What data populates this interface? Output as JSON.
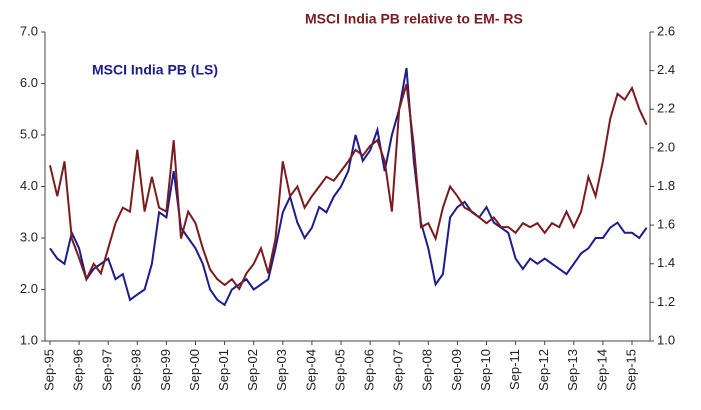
{
  "chart_data": {
    "type": "line",
    "categories": [
      "Sep-95",
      null,
      null,
      null,
      "Sep-96",
      null,
      null,
      null,
      "Sep-97",
      null,
      null,
      null,
      "Sep-98",
      null,
      null,
      null,
      "Sep-99",
      null,
      null,
      null,
      "Sep-00",
      null,
      null,
      null,
      "Sep-01",
      null,
      null,
      null,
      "Sep-02",
      null,
      null,
      null,
      "Sep-03",
      null,
      null,
      null,
      "Sep-04",
      null,
      null,
      null,
      "Sep-05",
      null,
      null,
      null,
      "Sep-06",
      null,
      null,
      null,
      "Sep-07",
      null,
      null,
      null,
      "Sep-08",
      null,
      null,
      null,
      "Sep-09",
      null,
      null,
      null,
      "Sep-10",
      null,
      null,
      null,
      "Sep-11",
      null,
      null,
      null,
      "Sep-12",
      null,
      null,
      null,
      "Sep-13",
      null,
      null,
      null,
      "Sep-14",
      null,
      null,
      null,
      "Sep-15",
      null,
      null
    ],
    "series": [
      {
        "name": "MSCI India PB (LS)",
        "color": "#1c1c8a",
        "values": [
          2.8,
          2.6,
          2.5,
          3.1,
          2.8,
          2.2,
          2.4,
          2.5,
          2.6,
          2.2,
          2.3,
          1.8,
          1.9,
          2.0,
          2.5,
          3.5,
          3.4,
          4.3,
          3.2,
          3.0,
          2.8,
          2.5,
          2.0,
          1.8,
          1.7,
          2.0,
          2.1,
          2.2,
          2.0,
          2.1,
          2.2,
          2.8,
          3.5,
          3.8,
          3.3,
          3.0,
          3.2,
          3.6,
          3.5,
          3.8,
          4.0,
          4.3,
          5.0,
          4.5,
          4.7,
          5.1,
          4.3,
          5.0,
          5.5,
          6.3,
          4.5,
          3.3,
          2.8,
          2.1,
          2.3,
          3.4,
          3.6,
          3.7,
          3.5,
          3.4,
          3.6,
          3.3,
          3.2,
          3.1,
          2.6,
          2.4,
          2.6,
          2.5,
          2.6,
          2.5,
          2.4,
          2.3,
          2.5,
          2.7,
          2.8,
          3.0,
          3.0,
          3.2,
          3.3,
          3.1,
          3.1,
          3.0,
          3.2
        ]
      },
      {
        "name": "MSCI India PB relative to EM- RS",
        "color": "#7a1b1f",
        "axis": "y2",
        "values": [
          1.91,
          1.75,
          1.93,
          1.53,
          1.43,
          1.32,
          1.4,
          1.35,
          1.48,
          1.61,
          1.69,
          1.67,
          1.99,
          1.67,
          1.85,
          1.69,
          1.67,
          2.04,
          1.53,
          1.67,
          1.61,
          1.48,
          1.37,
          1.32,
          1.29,
          1.32,
          1.27,
          1.35,
          1.4,
          1.48,
          1.35,
          1.53,
          1.93,
          1.75,
          1.8,
          1.69,
          1.75,
          1.8,
          1.85,
          1.83,
          1.88,
          1.93,
          1.99,
          1.96,
          2.01,
          2.04,
          1.93,
          1.67,
          2.2,
          2.33,
          2.01,
          1.59,
          1.61,
          1.53,
          1.69,
          1.8,
          1.75,
          1.69,
          1.67,
          1.64,
          1.61,
          1.64,
          1.59,
          1.59,
          1.56,
          1.61,
          1.59,
          1.61,
          1.56,
          1.61,
          1.59,
          1.67,
          1.59,
          1.67,
          1.85,
          1.75,
          1.93,
          2.15,
          2.28,
          2.25,
          2.31,
          2.2,
          2.12
        ]
      }
    ],
    "ylim": [
      1.0,
      7.0
    ],
    "yticks": [
      {
        "value": 1.0,
        "label": "1.0"
      },
      {
        "value": 2.0,
        "label": "2.0"
      },
      {
        "value": 3.0,
        "label": "3.0"
      },
      {
        "value": 4.0,
        "label": "4.0"
      },
      {
        "value": 5.0,
        "label": "5.0"
      },
      {
        "value": 6.0,
        "label": "6.0"
      },
      {
        "value": 7.0,
        "label": "7.0"
      }
    ],
    "y2lim": [
      1.0,
      2.6
    ],
    "y2ticks": [
      {
        "value": 1.0,
        "label": "1.0"
      },
      1.2,
      1.4,
      1.6,
      1.8,
      {
        "value": 2.0,
        "label": "2.0"
      },
      2.2,
      2.4,
      2.6
    ]
  }
}
